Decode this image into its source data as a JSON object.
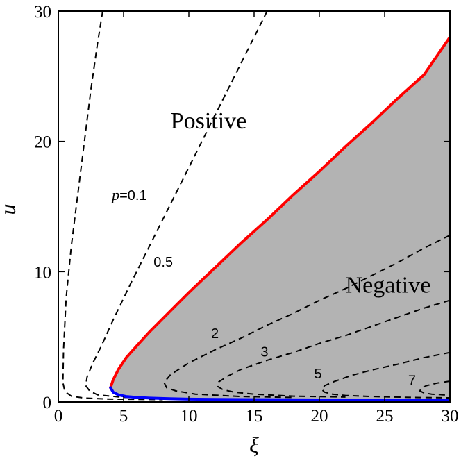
{
  "chart_data": {
    "type": "line",
    "xlabel": "ξ",
    "ylabel": "u",
    "xlim": [
      0,
      30
    ],
    "ylim": [
      0,
      30
    ],
    "xticks": [
      0,
      5,
      10,
      15,
      20,
      25,
      30
    ],
    "yticks": [
      0,
      10,
      20,
      30
    ],
    "grid": false,
    "regions": [
      {
        "label": "Positive",
        "at": [
          8.6,
          21
        ]
      },
      {
        "label": "Negative",
        "at": [
          22,
          8.4
        ]
      }
    ],
    "boundary_upper": {
      "color": "#ff0000",
      "x": [
        4.0,
        4.2,
        4.6,
        5.2,
        6.0,
        7.0,
        8.5,
        10,
        12,
        14,
        16,
        18,
        20,
        22,
        24,
        26,
        28,
        30
      ],
      "y": [
        1.1,
        1.7,
        2.5,
        3.4,
        4.3,
        5.4,
        6.9,
        8.4,
        10.3,
        12.2,
        14.0,
        15.9,
        17.7,
        19.6,
        21.4,
        23.3,
        25.1,
        28.0
      ]
    },
    "boundary_lower": {
      "color": "#0000ff",
      "x": [
        4.0,
        4.2,
        4.6,
        5.2,
        6.0,
        7.0,
        8.5,
        10,
        12,
        15,
        20,
        25,
        30
      ],
      "y": [
        1.1,
        0.75,
        0.55,
        0.42,
        0.35,
        0.3,
        0.25,
        0.22,
        0.2,
        0.18,
        0.16,
        0.15,
        0.14
      ]
    },
    "fill_color": "#b3b3b3",
    "series": [
      {
        "name": "p=0.1",
        "label_text": "p=0.1",
        "label_at": [
          4.1,
          15.5
        ],
        "x": [
          3.4,
          3.0,
          2.5,
          2.0,
          1.5,
          1.0,
          0.6,
          0.4,
          0.35,
          0.5,
          1.0,
          2.0,
          4.0,
          6.0,
          8.0
        ],
        "y": [
          30,
          27.5,
          24,
          20,
          16,
          12,
          8,
          4,
          1.5,
          0.8,
          0.45,
          0.3,
          0.22,
          0.2,
          0.18
        ]
      },
      {
        "name": "0.5",
        "label_text": "0.5",
        "label_at": [
          7.3,
          10.4
        ],
        "x": [
          16.0,
          14.5,
          13.0,
          11.5,
          10.0,
          8.5,
          7.0,
          5.5,
          4.2,
          3.3,
          2.6,
          2.2,
          2.1,
          2.4,
          3.0,
          5.0,
          8.0
        ],
        "y": [
          30,
          27,
          24,
          21,
          18,
          15,
          12,
          9,
          6.3,
          4.3,
          2.9,
          1.9,
          1.25,
          0.85,
          0.55,
          0.35,
          0.27
        ]
      },
      {
        "name": "2",
        "label_text": "2",
        "label_at": [
          11.7,
          4.9
        ],
        "x": [
          30,
          28,
          26,
          24,
          22,
          20,
          18,
          16,
          14,
          12,
          10,
          8.6,
          8.1,
          8.3,
          9.0,
          10.5,
          14.0,
          18.0
        ],
        "y": [
          12.8,
          11.8,
          10.7,
          9.7,
          8.7,
          7.8,
          6.8,
          5.9,
          4.9,
          4.0,
          3.0,
          2.1,
          1.5,
          1.1,
          0.85,
          0.6,
          0.42,
          0.35
        ]
      },
      {
        "name": "3",
        "label_text": "3",
        "label_at": [
          15.5,
          3.5
        ],
        "x": [
          30,
          28,
          26,
          24,
          22,
          20,
          18,
          16,
          14,
          13.0,
          12.3,
          12.2,
          12.6,
          13.5,
          15.0,
          18.0,
          22.0
        ],
        "y": [
          7.8,
          7.2,
          6.5,
          5.8,
          5.1,
          4.5,
          3.8,
          3.2,
          2.5,
          2.0,
          1.55,
          1.2,
          0.95,
          0.75,
          0.6,
          0.45,
          0.38
        ]
      },
      {
        "name": "5",
        "label_text": "5",
        "label_at": [
          19.6,
          1.8
        ],
        "x": [
          30,
          28,
          26,
          24,
          22.5,
          21.2,
          20.4,
          20.2,
          20.4,
          21.0,
          22.0,
          24.0,
          27.0,
          30.0
        ],
        "y": [
          3.8,
          3.4,
          2.9,
          2.45,
          2.05,
          1.6,
          1.25,
          0.95,
          0.75,
          0.6,
          0.5,
          0.42,
          0.35,
          0.32
        ]
      },
      {
        "name": "7",
        "label_text": "7",
        "label_at": [
          26.8,
          1.3
        ],
        "x": [
          30,
          29.0,
          28.2,
          27.8,
          27.7,
          28.0,
          28.6,
          29.5,
          30
        ],
        "y": [
          1.6,
          1.45,
          1.25,
          1.05,
          0.85,
          0.7,
          0.6,
          0.55,
          0.52
        ]
      }
    ]
  }
}
